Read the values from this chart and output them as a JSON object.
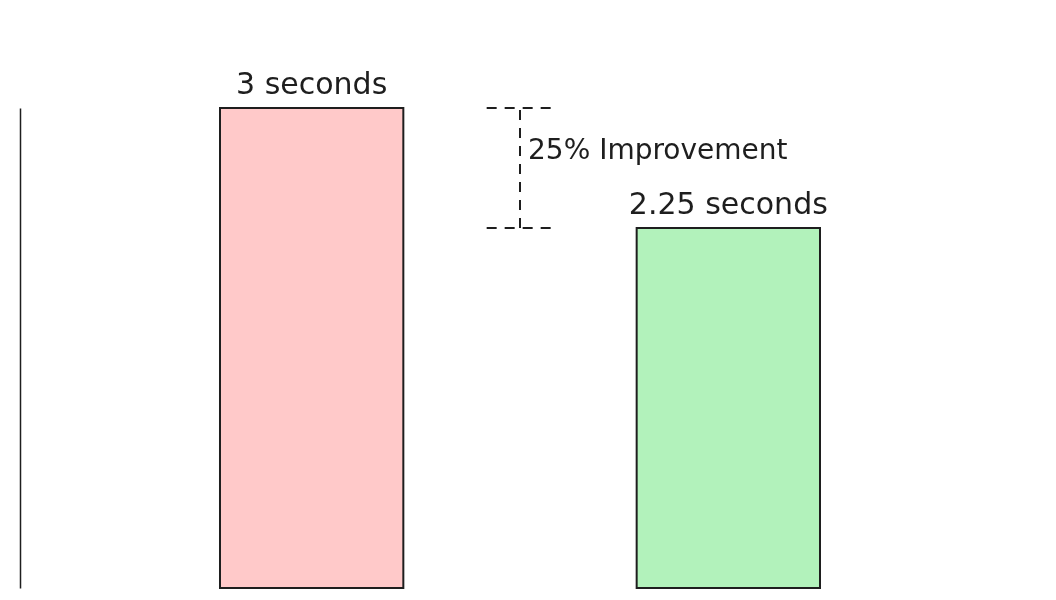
{
  "chart_data": {
    "type": "bar",
    "categories": [
      null,
      null
    ],
    "values": [
      3,
      2.25
    ],
    "value_labels": [
      "3 seconds",
      "2.25 seconds"
    ],
    "colors": [
      "#ffc9c9",
      "#b2f2bb"
    ],
    "ref_lines": [
      {
        "axis": "y",
        "value": 3,
        "line_style": "dashed"
      },
      {
        "axis": "y",
        "value": 2.25,
        "line_style": "dashed"
      }
    ],
    "annotations": [
      "25% Improvement"
    ]
  }
}
